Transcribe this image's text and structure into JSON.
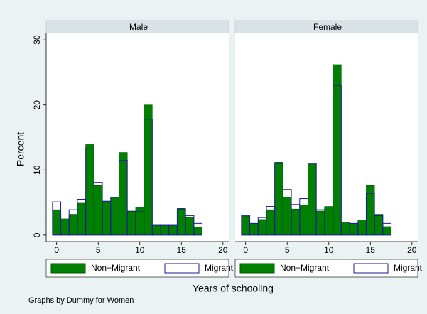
{
  "x_label": "Years of schooling",
  "y_label": "Percent",
  "note": "Graphs by Dummy for Women",
  "chart_data": [
    {
      "type": "histogram",
      "title": "Male",
      "bins": [
        -0.5,
        0.5,
        1.5,
        2.5,
        3.5,
        4.5,
        5.5,
        6.5,
        7.5,
        8.5,
        9.5,
        10.5,
        11.5,
        12.5,
        13.5,
        14.5,
        15.5,
        16.5,
        17.5
      ],
      "series": [
        {
          "name": "Non−Migrant",
          "color": "#007f00",
          "style": "filled",
          "values": [
            3.9,
            2.5,
            3.2,
            4.9,
            14.0,
            7.6,
            5.2,
            5.8,
            12.7,
            3.7,
            4.3,
            20.0,
            1.5,
            1.5,
            1.5,
            4.1,
            2.7,
            1.2
          ]
        },
        {
          "name": "Migrant",
          "color": "#1a1a9c",
          "style": "outline",
          "values": [
            5.1,
            3.1,
            3.9,
            5.5,
            13.4,
            8.1,
            5.2,
            5.8,
            11.5,
            3.6,
            3.6,
            17.8,
            1.5,
            1.5,
            1.5,
            4.0,
            3.0,
            1.8
          ]
        }
      ],
      "xlim": [
        -1,
        20.7
      ],
      "xticks": [
        0,
        5,
        10,
        15,
        20
      ],
      "ylim": [
        -1,
        31
      ],
      "yticks": [
        0,
        10,
        20,
        30
      ]
    },
    {
      "type": "histogram",
      "title": "Female",
      "bins": [
        -0.5,
        0.5,
        1.5,
        2.5,
        3.5,
        4.5,
        5.5,
        6.5,
        7.5,
        8.5,
        9.5,
        10.5,
        11.5,
        12.5,
        13.5,
        14.5,
        15.5,
        16.5,
        17.5
      ],
      "series": [
        {
          "name": "Non−Migrant",
          "color": "#007f00",
          "style": "filled",
          "values": [
            2.9,
            1.8,
            2.4,
            3.9,
            11.2,
            5.8,
            4.0,
            4.6,
            10.9,
            3.7,
            4.4,
            26.2,
            1.9,
            1.8,
            2.3,
            7.6,
            3.2,
            1.3
          ]
        },
        {
          "name": "Migrant",
          "color": "#1a1a9c",
          "style": "outline",
          "values": [
            3.0,
            1.8,
            2.7,
            4.4,
            11.0,
            7.0,
            4.7,
            5.6,
            11.0,
            3.9,
            4.3,
            23.0,
            2.0,
            1.8,
            2.0,
            6.4,
            3.0,
            1.8
          ]
        }
      ],
      "xlim": [
        -1,
        20.7
      ],
      "xticks": [
        0,
        5,
        10,
        15,
        20
      ],
      "ylim": [
        -1,
        31
      ]
    }
  ]
}
